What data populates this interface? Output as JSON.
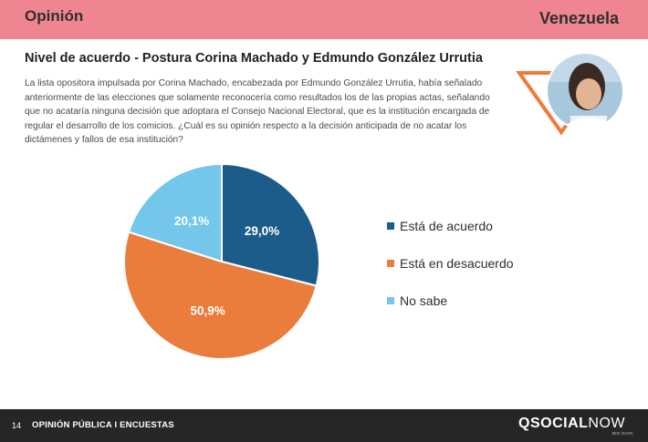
{
  "header": {
    "section": "Opinión",
    "country": "Venezuela",
    "color": "#f08592"
  },
  "slide_title": "Nivel de acuerdo - Postura Corina Machado y Edmundo González Urrutia",
  "intro_text": "La lista opositora impulsada por Corina Machado, encabezada por Edmundo González Urrutia, había señalado anteriormente de las elecciones que solamente reconocería como resultados los de las propias actas, señalando que no acataría ninguna decisión que adoptara el Consejo Nacional Electoral, que es la institución encargada de regular el desarrollo de los comicios. ¿Cuál es su opinión respecto a la decisión anticipada de no acatar los dictámenes y fallos de esa institución?",
  "chart_data": {
    "type": "pie",
    "categories": [
      "Está de acuerdo",
      "Está en desacuerdo",
      "No sabe"
    ],
    "values": [
      29.0,
      50.9,
      20.1
    ],
    "labels": [
      "29,0%",
      "50,9%",
      "20,1%"
    ],
    "colors": [
      "#1b5c8a",
      "#ea7d3c",
      "#74c6ea"
    ],
    "legend_position": "right"
  },
  "footer": {
    "page_number": "14",
    "label": "OPINIÓN PÚBLICA I ENCUESTAS",
    "brand_bold": "QSOCIAL",
    "brand_light": "NOW",
    "tagline": "BIG DATA"
  }
}
